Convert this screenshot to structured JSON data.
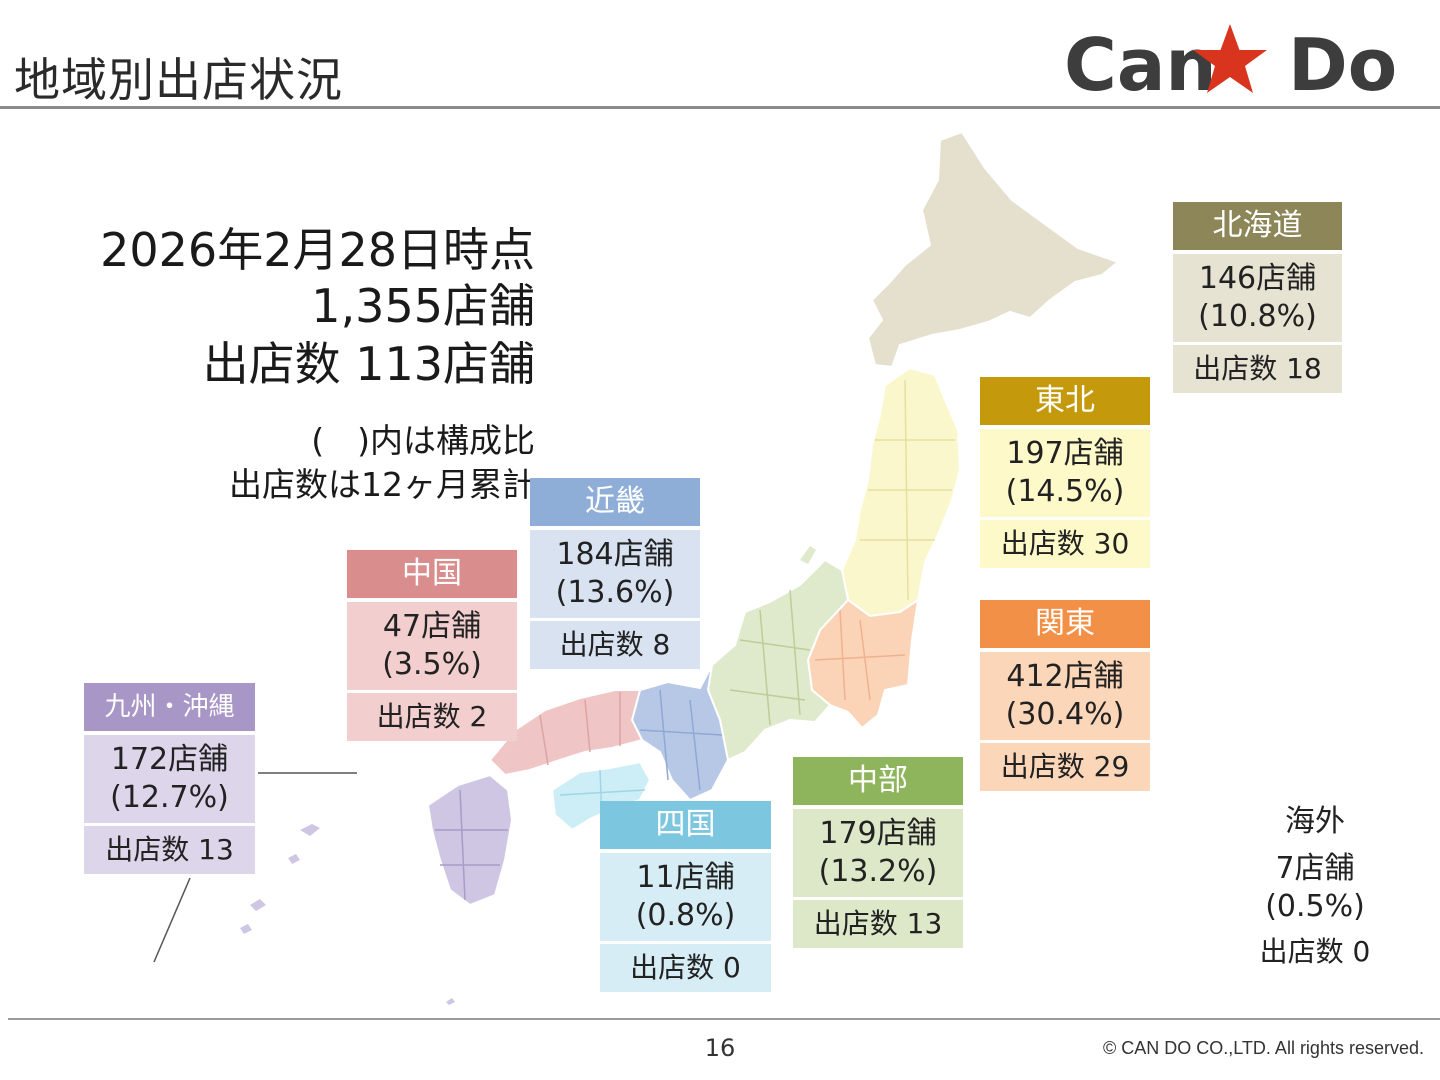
{
  "page_title": "地域別出店状況",
  "logo": {
    "text_left": "Can",
    "text_right": "Do",
    "star_color": "#d9341e",
    "text_color": "#3d3d3d"
  },
  "summary": {
    "as_of": "2026年2月28日時点",
    "total_stores": "1,355店舗",
    "openings": "出店数 113店舗",
    "note_ratio": "(　)内は構成比",
    "note_openings": "出店数は12ヶ月累計"
  },
  "regions": {
    "hokkaido": {
      "name": "北海道",
      "stores": "146店舗",
      "share": "(10.8%)",
      "openings": "出店数 18",
      "header_color": "#8c8658",
      "body_color": "#e6e3d3",
      "map_color": "#e4e0cd"
    },
    "tohoku": {
      "name": "東北",
      "stores": "197店舗",
      "share": "(14.5%)",
      "openings": "出店数 30",
      "header_color": "#c49a0c",
      "body_color": "#fdf9c8",
      "map_color": "#fbf7cc"
    },
    "kanto": {
      "name": "関東",
      "stores": "412店舗",
      "share": "(30.4%)",
      "openings": "出店数 29",
      "header_color": "#f29048",
      "body_color": "#fcd6b8",
      "map_color": "#fbd3b7"
    },
    "chubu": {
      "name": "中部",
      "stores": "179店舗",
      "share": "(13.2%)",
      "openings": "出店数 13",
      "header_color": "#8fb55c",
      "body_color": "#dde8c9",
      "map_color": "#dfe9cb"
    },
    "kinki": {
      "name": "近畿",
      "stores": "184店舗",
      "share": "(13.6%)",
      "openings": "出店数 8",
      "header_color": "#8eaed8",
      "body_color": "#d8e2f1",
      "map_color": "#b6c8e6"
    },
    "chugoku": {
      "name": "中国",
      "stores": "47店舗",
      "share": "(3.5%)",
      "openings": "出店数 2",
      "header_color": "#d98d8d",
      "body_color": "#f2cece",
      "map_color": "#f0c5c5"
    },
    "shikoku": {
      "name": "四国",
      "stores": "11店舗",
      "share": "(0.8%)",
      "openings": "出店数 0",
      "header_color": "#7dc6df",
      "body_color": "#d6edf5",
      "map_color": "#cdeef6"
    },
    "kyushu": {
      "name": "九州・沖縄",
      "stores": "172店舗",
      "share": "(12.7%)",
      "openings": "出店数 13",
      "header_color": "#a896c6",
      "body_color": "#ddd5ea",
      "map_color": "#cfc6e3"
    }
  },
  "overseas": {
    "name": "海外",
    "stores": "7店舗",
    "share": "(0.5%)",
    "openings": "出店数 0"
  },
  "footer": {
    "page_number": "16",
    "copyright": "© CAN DO CO.,LTD. All rights reserved."
  }
}
